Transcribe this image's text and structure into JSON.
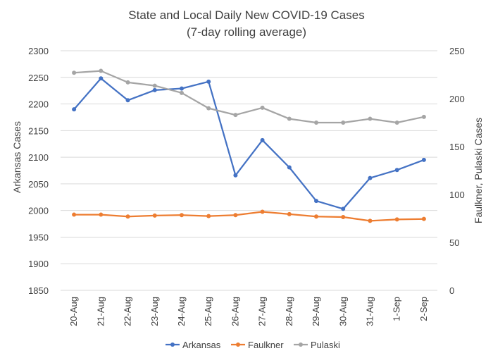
{
  "chart_data": {
    "type": "line",
    "title": "State and Local Daily New COVID-19 Cases",
    "subtitle": "(7-day rolling average)",
    "categories": [
      "20-Aug",
      "21-Aug",
      "22-Aug",
      "23-Aug",
      "24-Aug",
      "25-Aug",
      "26-Aug",
      "27-Aug",
      "28-Aug",
      "29-Aug",
      "30-Aug",
      "31-Aug",
      "1-Sep",
      "2-Sep"
    ],
    "ylabel": "Arkansas Cases",
    "y2label": "Faulkner,  Pulaski Cases",
    "ylim": [
      1850,
      2300
    ],
    "y2lim": [
      0,
      250
    ],
    "yticks": [
      "1850",
      "1900",
      "1950",
      "2000",
      "2050",
      "2100",
      "2150",
      "2200",
      "2250",
      "2300"
    ],
    "y2ticks": [
      "0",
      "50",
      "100",
      "150",
      "200",
      "250"
    ],
    "grid": true,
    "legend_position": "bottom",
    "series": [
      {
        "name": "Arkansas",
        "axis": "left",
        "color": "#4472c4",
        "values": [
          2190,
          2248,
          2207,
          2226,
          2229,
          2242,
          2066,
          2132,
          2081,
          2018,
          2003,
          2061,
          2076,
          2095
        ]
      },
      {
        "name": "Faulkner",
        "axis": "right",
        "color": "#ed7d31",
        "values": [
          79,
          79,
          77,
          78,
          78.5,
          77.5,
          78.5,
          82,
          79.5,
          77,
          76.5,
          72.5,
          74,
          74.5
        ]
      },
      {
        "name": "Pulaski",
        "axis": "right",
        "color": "#a5a5a5",
        "values": [
          227,
          229,
          217,
          213.5,
          206,
          190,
          183,
          190.5,
          179,
          175,
          175,
          179,
          175,
          181
        ]
      }
    ]
  }
}
